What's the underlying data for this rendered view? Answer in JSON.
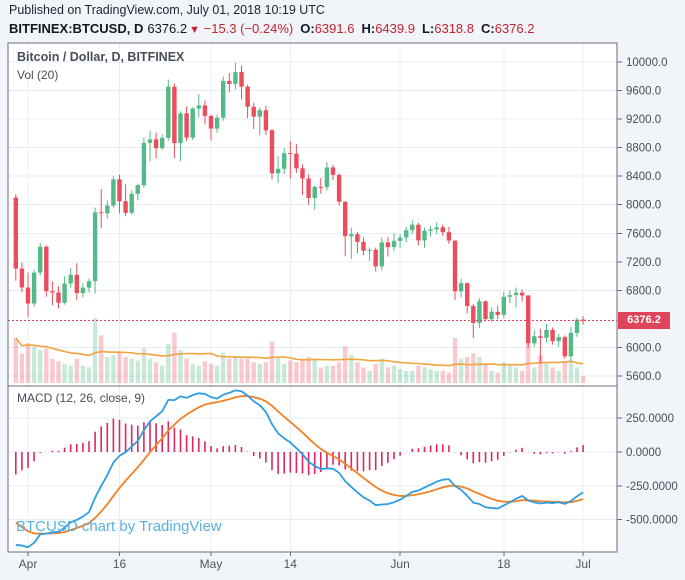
{
  "header": {
    "published_line": "Published on TradingView.com, July 01, 2018 10:19 UTC",
    "symbol": "BITFINEX:BTCUSD, D",
    "last_price": "6376.2",
    "direction_icon": "▼",
    "change": "−15.3 (−0.24%)",
    "ohlc": [
      {
        "label": "O:",
        "value": "6391.6"
      },
      {
        "label": "H:",
        "value": "6439.9"
      },
      {
        "label": "L:",
        "value": "6318.8"
      },
      {
        "label": "C:",
        "value": "6376.2"
      }
    ]
  },
  "main_pane": {
    "legend_title": "Bitcoin / Dollar, D, BITFINEX",
    "legend_vol": "Vol (20)",
    "price_label": "6376.2"
  },
  "macd_pane": {
    "label": "MACD (12, 26, close, 9)"
  },
  "watermark": "BTCUSD chart by TradingView",
  "colors": {
    "page_bg": "#f1f4f8",
    "pane_bg": "#ffffff",
    "frame": "#696e76",
    "grid": "#e7edf4",
    "up": "#53b987",
    "down": "#eb4d5c",
    "vol_up": "rgba(83,185,135,0.32)",
    "vol_down": "rgba(235,77,92,0.30)",
    "vol_ma": "#f2a33c",
    "macd_line": "#2f9de0",
    "signal_line": "#f28124",
    "histogram": "#e0265e",
    "price_line": "#e0445a",
    "badge_bg": "#e0445a",
    "axis_text": "#4a4e59",
    "time_text": "#53575f"
  },
  "chart_data": [
    {
      "type": "candlestick",
      "title": "Bitcoin / Dollar, D, BITFINEX",
      "interval": "D",
      "start_date": "2018-03-30",
      "last_price": 6376.2,
      "yticks": [
        10000,
        9600,
        9200,
        8800,
        8400,
        8000,
        7600,
        7200,
        6800,
        6000,
        5600
      ],
      "xticks": [
        {
          "label": "Apr",
          "i": 2
        },
        {
          "label": "16",
          "i": 17
        },
        {
          "label": "May",
          "i": 32
        },
        {
          "label": "14",
          "i": 45
        },
        {
          "label": "Jun",
          "i": 63
        },
        {
          "label": "18",
          "i": 80
        },
        {
          "label": "Jul",
          "i": 93
        }
      ],
      "ohlc": [
        [
          8100,
          8150,
          6935,
          7105
        ],
        [
          7105,
          7190,
          6775,
          6840
        ],
        [
          6840,
          7050,
          6425,
          6615
        ],
        [
          6615,
          7090,
          6570,
          7049
        ],
        [
          7049,
          7460,
          7010,
          7411
        ],
        [
          7411,
          7430,
          6710,
          6789
        ],
        [
          6789,
          6925,
          6590,
          6770
        ],
        [
          6770,
          6860,
          6545,
          6627
        ],
        [
          6627,
          7000,
          6600,
          6895
        ],
        [
          6895,
          7110,
          6835,
          7018
        ],
        [
          7018,
          7180,
          6660,
          6763
        ],
        [
          6763,
          6900,
          6700,
          6838
        ],
        [
          6838,
          6965,
          6770,
          6929
        ],
        [
          6929,
          7960,
          6754,
          7894
        ],
        [
          7894,
          8222,
          7675,
          7880
        ],
        [
          7880,
          8060,
          7805,
          7988
        ],
        [
          7988,
          8398,
          7960,
          8355
        ],
        [
          8355,
          8420,
          7880,
          8048
        ],
        [
          8048,
          8285,
          7840,
          7886
        ],
        [
          7886,
          8198,
          7860,
          8152
        ],
        [
          8152,
          8298,
          8060,
          8274
        ],
        [
          8274,
          8945,
          8240,
          8866
        ],
        [
          8866,
          9035,
          8610,
          8917
        ],
        [
          8917,
          9010,
          8650,
          8793
        ],
        [
          8793,
          8990,
          8770,
          8938
        ],
        [
          8938,
          9755,
          8900,
          9654
        ],
        [
          9654,
          9700,
          8651,
          8864
        ],
        [
          8864,
          9310,
          8611,
          9281
        ],
        [
          9281,
          9380,
          8890,
          8940
        ],
        [
          8940,
          9365,
          8905,
          9348
        ],
        [
          9348,
          9550,
          9225,
          9392
        ],
        [
          9392,
          9460,
          9125,
          9245
        ],
        [
          9245,
          9260,
          8900,
          9067
        ],
        [
          9067,
          9265,
          9010,
          9219
        ],
        [
          9219,
          9795,
          9175,
          9734
        ],
        [
          9734,
          9845,
          9575,
          9692
        ],
        [
          9692,
          9990,
          9615,
          9858
        ],
        [
          9858,
          9950,
          9475,
          9654
        ],
        [
          9654,
          9680,
          9210,
          9373
        ],
        [
          9373,
          9430,
          9060,
          9234
        ],
        [
          9234,
          9365,
          8970,
          9325
        ],
        [
          9325,
          9390,
          8975,
          9043
        ],
        [
          9043,
          9060,
          8355,
          8441
        ],
        [
          8441,
          8680,
          8305,
          8504
        ],
        [
          8504,
          8790,
          8430,
          8723
        ],
        [
          8723,
          8890,
          8365,
          8716
        ],
        [
          8716,
          8850,
          8445,
          8510
        ],
        [
          8510,
          8565,
          8135,
          8368
        ],
        [
          8368,
          8425,
          8000,
          8094
        ],
        [
          8094,
          8270,
          7930,
          8250
        ],
        [
          8250,
          8375,
          8155,
          8247
        ],
        [
          8247,
          8600,
          8200,
          8522
        ],
        [
          8522,
          8560,
          8345,
          8418
        ],
        [
          8418,
          8440,
          7990,
          8042
        ],
        [
          8042,
          8050,
          7280,
          7559
        ],
        [
          7559,
          7680,
          7240,
          7587
        ],
        [
          7587,
          7620,
          7320,
          7480
        ],
        [
          7480,
          7540,
          7295,
          7355
        ],
        [
          7355,
          7400,
          7215,
          7368
        ],
        [
          7368,
          7400,
          7065,
          7135
        ],
        [
          7135,
          7540,
          7080,
          7472
        ],
        [
          7472,
          7550,
          7275,
          7406
        ],
        [
          7406,
          7600,
          7350,
          7494
        ],
        [
          7494,
          7590,
          7395,
          7541
        ],
        [
          7541,
          7690,
          7475,
          7643
        ],
        [
          7643,
          7780,
          7590,
          7720
        ],
        [
          7720,
          7745,
          7430,
          7500
        ],
        [
          7500,
          7680,
          7395,
          7633
        ],
        [
          7633,
          7700,
          7550,
          7653
        ],
        [
          7653,
          7755,
          7590,
          7684
        ],
        [
          7684,
          7720,
          7560,
          7615
        ],
        [
          7615,
          7690,
          7450,
          7498
        ],
        [
          7498,
          7500,
          6665,
          6786
        ],
        [
          6786,
          6960,
          6705,
          6901
        ],
        [
          6901,
          6910,
          6480,
          6581
        ],
        [
          6581,
          6610,
          6130,
          6344
        ],
        [
          6344,
          6690,
          6270,
          6647
        ],
        [
          6647,
          6660,
          6365,
          6397
        ],
        [
          6397,
          6560,
          6360,
          6499
        ],
        [
          6499,
          6590,
          6395,
          6456
        ],
        [
          6456,
          6780,
          6410,
          6710
        ],
        [
          6710,
          6800,
          6620,
          6734
        ],
        [
          6734,
          6840,
          6560,
          6767
        ],
        [
          6767,
          6815,
          6640,
          6729
        ],
        [
          6729,
          6730,
          5995,
          6058
        ],
        [
          6058,
          6240,
          6010,
          6158
        ],
        [
          6158,
          6260,
          5777,
          6135
        ],
        [
          6135,
          6330,
          6070,
          6247
        ],
        [
          6247,
          6280,
          6040,
          6089
        ],
        [
          6089,
          6190,
          6010,
          6144
        ],
        [
          6144,
          6170,
          5840,
          5876
        ],
        [
          5876,
          6290,
          5805,
          6203
        ],
        [
          6203,
          6420,
          6150,
          6390
        ],
        [
          6391.6,
          6439.9,
          6318.8,
          6376.2
        ]
      ],
      "volume": [
        52,
        34,
        46,
        42,
        38,
        40,
        28,
        25,
        22,
        20,
        28,
        20,
        18,
        75,
        55,
        30,
        32,
        35,
        30,
        28,
        26,
        40,
        28,
        24,
        20,
        45,
        58,
        38,
        28,
        22,
        20,
        25,
        22,
        20,
        35,
        28,
        30,
        28,
        30,
        24,
        22,
        24,
        48,
        30,
        22,
        26,
        24,
        28,
        30,
        28,
        18,
        20,
        20,
        24,
        42,
        32,
        24,
        18,
        14,
        22,
        28,
        18,
        20,
        16,
        14,
        14,
        20,
        18,
        16,
        14,
        14,
        12,
        52,
        28,
        30,
        34,
        30,
        22,
        14,
        12,
        24,
        20,
        18,
        14,
        45,
        18,
        32,
        24,
        18,
        14,
        24,
        26,
        18,
        8
      ],
      "volume_ma_period": 20
    },
    {
      "type": "macd",
      "params": {
        "fast": 12,
        "slow": 26,
        "source": "close",
        "signal": 9
      },
      "yticks": [
        250,
        0,
        -250,
        -500
      ],
      "seeds": {
        "ema_fast": 7600,
        "ema_slow": 8300,
        "signal": -480
      }
    }
  ]
}
